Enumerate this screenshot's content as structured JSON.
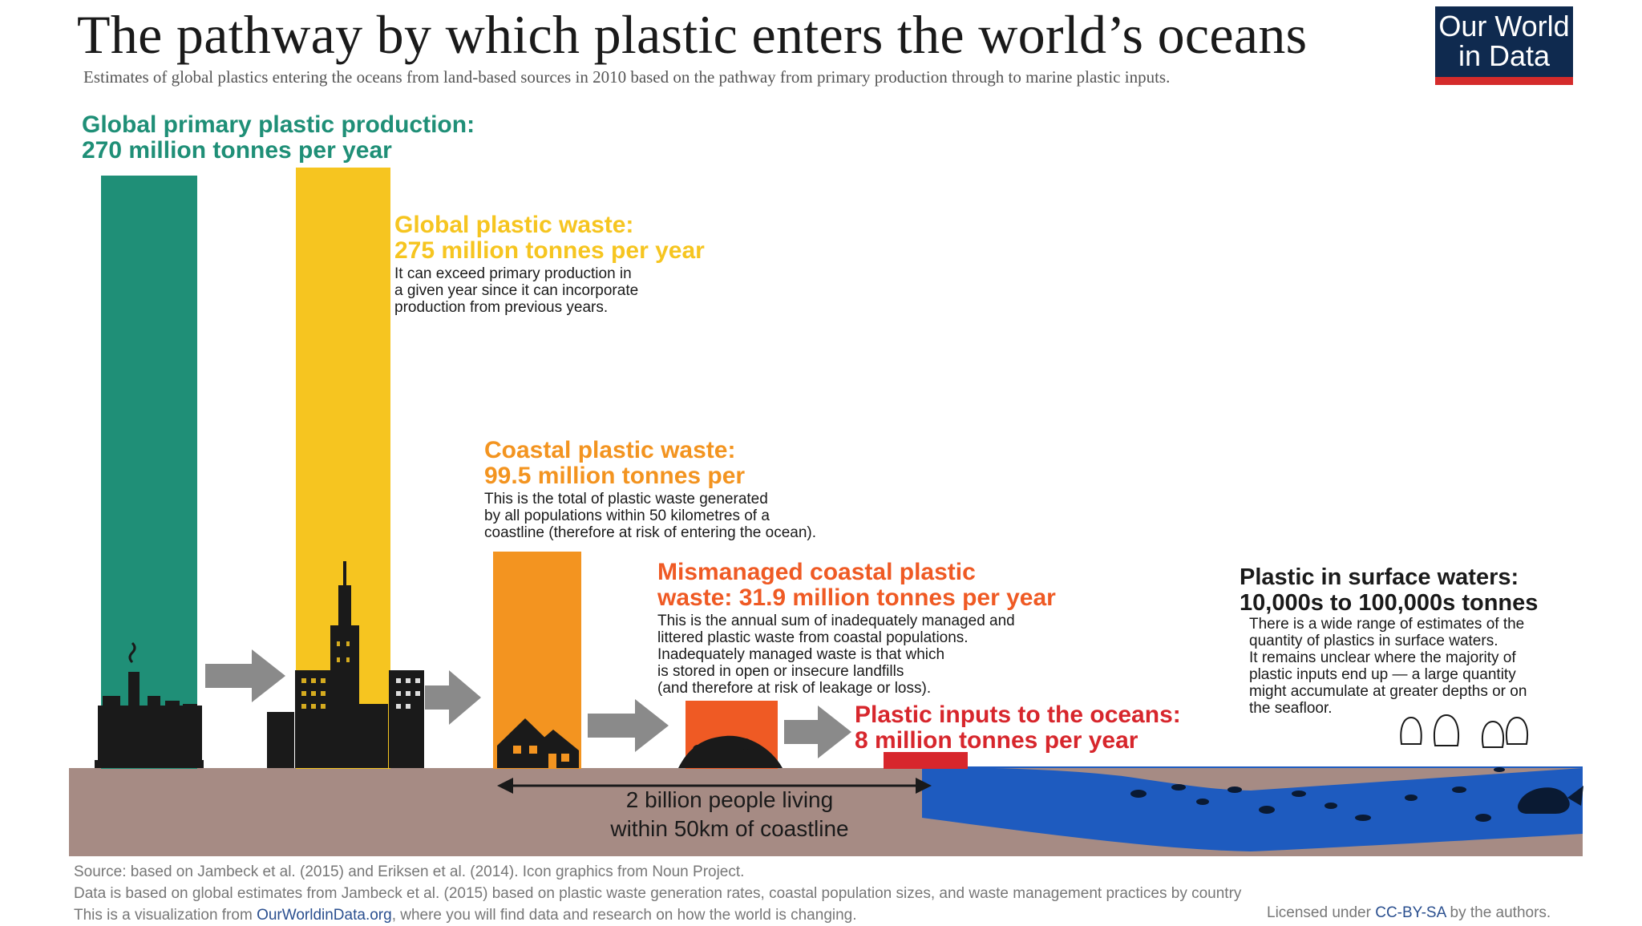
{
  "title": "The pathway by which plastic enters the world’s oceans",
  "subtitle": "Estimates of global plastics entering the oceans from land-based sources in 2010 based on the pathway from primary production through to marine plastic inputs.",
  "logo": {
    "line1": "Our World",
    "line2": "in Data"
  },
  "colors": {
    "production": "#1f8f77",
    "waste": "#f6c520",
    "coastal": "#f39420",
    "mismanaged": "#ef5a24",
    "inputs": "#d7262c",
    "ground": "#a68b84",
    "ocean": "#1e5bbf",
    "arrow": "#8a8a8a"
  },
  "stages": {
    "production": {
      "heading_line1": "Global primary plastic production:",
      "heading_line2": "270 million tonnes per year",
      "value_mt": 270
    },
    "waste": {
      "heading_line1": "Global plastic waste:",
      "heading_line2": "275 million tonnes per year",
      "note_lines": [
        "It can exceed primary production in",
        "a given year since it can incorporate",
        "production from previous years."
      ],
      "value_mt": 275
    },
    "coastal": {
      "heading_line1": "Coastal plastic waste:",
      "heading_line2": "99.5 million tonnes per",
      "note_lines": [
        "This is the total of plastic waste generated",
        "by all populations within 50 kilometres of a",
        "coastline (therefore at risk of entering the ocean)."
      ],
      "value_mt": 99.5
    },
    "mismanaged": {
      "heading_line1": "Mismanaged coastal plastic",
      "heading_line2": "waste: 31.9 million tonnes per year",
      "note_lines": [
        "This is the annual sum of inadequately managed and",
        "littered plastic waste from coastal populations.",
        "Inadequately managed waste is that which",
        "is stored in open or insecure landfills",
        "(and therefore at risk of leakage or loss)."
      ],
      "value_mt": 31.9
    },
    "inputs": {
      "heading_line1": "Plastic inputs to the oceans:",
      "heading_line2": "8 million tonnes per year",
      "value_mt": 8
    },
    "surface": {
      "heading_line1": "Plastic in surface waters:",
      "heading_line2": "10,000s to 100,000s tonnes",
      "note_lines": [
        "There is a wide range of estimates of the",
        "quantity of plastics in surface waters.",
        "It remains unclear where the majority of",
        "plastic inputs end up — a large quantity",
        "might accumulate at greater depths or on",
        "the seafloor."
      ]
    }
  },
  "coastline": {
    "line1": "2 billion people living",
    "line2": "within 50km of coastline"
  },
  "footer": {
    "source": "Source: based on Jambeck et al. (2015) and Eriksen et al. (2014). Icon graphics from Noun Project.",
    "data_note": "Data is based on global estimates from Jambeck et al. (2015) based on plastic waste generation rates, coastal population sizes, and waste management practices by country",
    "viz_prefix": "This is a visualization from ",
    "viz_link": "OurWorldinData.org",
    "viz_suffix": ", where you will find data and research on how the world is changing.",
    "license_prefix": "Licensed under ",
    "license_link": "CC-BY-SA",
    "license_suffix": " by the authors."
  }
}
